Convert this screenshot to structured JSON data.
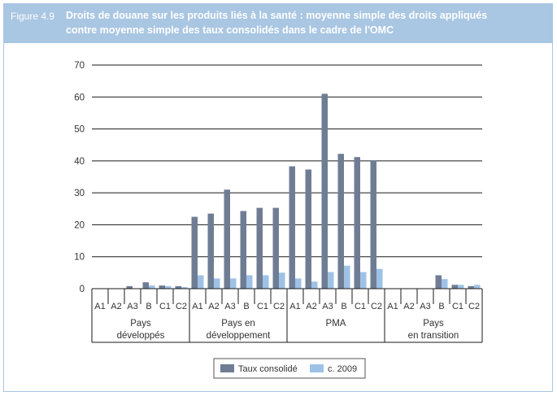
{
  "figure": {
    "label": "Figure 4.9",
    "title_line1": "Droits de douane sur les produits liés à la santé : moyenne simple des droits appliqués",
    "title_line2": "contre moyenne simple des taux consolidés dans le cadre de l'OMC"
  },
  "colors": {
    "header_bg": "#a9c6e2",
    "taux_consolide": "#6f7d94",
    "c2009": "#9ec2e6"
  },
  "chart_data": {
    "type": "bar",
    "ylim": [
      0,
      70
    ],
    "yticks": [
      0,
      10,
      20,
      30,
      40,
      50,
      60,
      70
    ],
    "grid": true,
    "legend_position": "bottom",
    "categories": [
      "A1",
      "A2",
      "A3",
      "B",
      "C1",
      "C2",
      "A1",
      "A2",
      "A3",
      "B",
      "C1",
      "C2",
      "A1",
      "A2",
      "A3",
      "B",
      "C1",
      "C2",
      "A1",
      "A2",
      "A3",
      "B",
      "C1",
      "C2"
    ],
    "groups": [
      {
        "line1": "Pays",
        "line2": "développés",
        "count": 6
      },
      {
        "line1": "Pays en",
        "line2": "développement",
        "count": 6
      },
      {
        "line1": "PMA",
        "line2": "",
        "count": 6
      },
      {
        "line1": "Pays",
        "line2": "en transition",
        "count": 6
      }
    ],
    "series": [
      {
        "name": "Taux consolidé",
        "color": "#6f7d94",
        "values": [
          0,
          0,
          0.8,
          2,
          1,
          0.8,
          22.5,
          23.5,
          31,
          24.3,
          25.3,
          25.3,
          38.3,
          37.3,
          61,
          42.2,
          41.2,
          40.2,
          0,
          0,
          0,
          4.2,
          1.2,
          0.8
        ]
      },
      {
        "name": "c. 2009",
        "color": "#9ec2e6",
        "values": [
          0,
          0,
          0,
          1,
          0.8,
          0.5,
          4.2,
          3.2,
          3.2,
          4.2,
          4.2,
          5,
          3.2,
          2.2,
          5.2,
          7.2,
          5.2,
          6.2,
          0,
          0,
          0,
          3,
          1.2,
          1.2
        ]
      }
    ]
  }
}
